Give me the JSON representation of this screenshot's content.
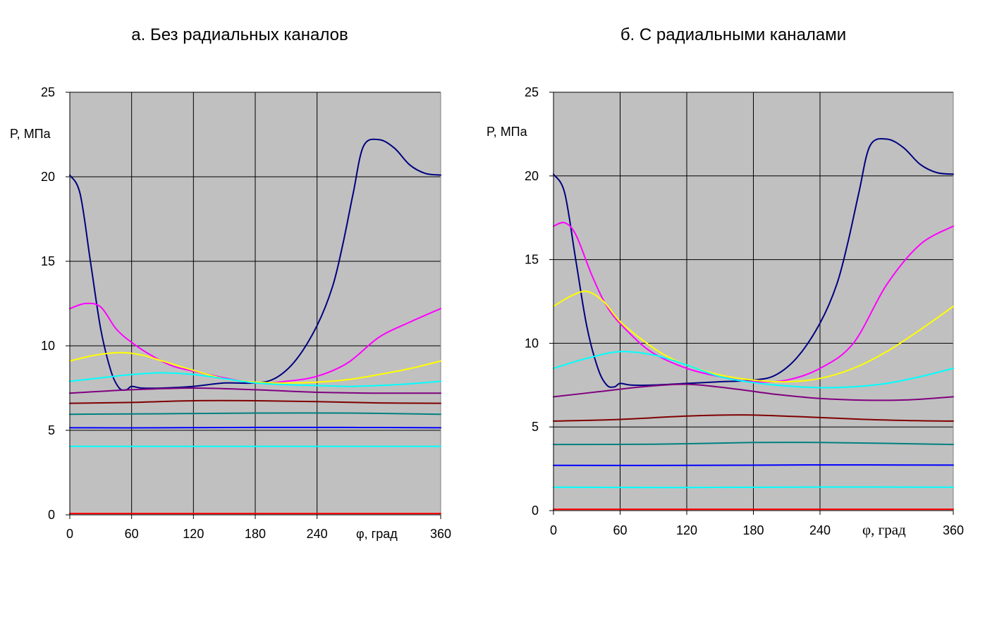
{
  "chart_data": [
    {
      "type": "line",
      "title": "а. Без радиальных каналов",
      "ylabel": "P, МПа",
      "xlabel": "φ, град",
      "xlim": [
        0,
        360
      ],
      "ylim": [
        0,
        25
      ],
      "x_ticks": [
        "0",
        "60",
        "120",
        "180",
        "240",
        "360"
      ],
      "y_ticks": [
        "0",
        "5",
        "10",
        "15",
        "20",
        "25"
      ],
      "grid": true,
      "plot_background": "#C0C0C0",
      "series": [
        {
          "color": "#000080",
          "points": [
            [
              0,
              20.1
            ],
            [
              10,
              19
            ],
            [
              20,
              15
            ],
            [
              30,
              11
            ],
            [
              40,
              8.5
            ],
            [
              48,
              7.5
            ],
            [
              55,
              7.4
            ],
            [
              60,
              7.6
            ],
            [
              70,
              7.5
            ],
            [
              90,
              7.5
            ],
            [
              120,
              7.6
            ],
            [
              150,
              7.8
            ],
            [
              180,
              7.8
            ],
            [
              200,
              8.1
            ],
            [
              220,
              9.2
            ],
            [
              240,
              11.2
            ],
            [
              255,
              13.5
            ],
            [
              265,
              16
            ],
            [
              275,
              19
            ],
            [
              285,
              21.8
            ],
            [
              300,
              22.2
            ],
            [
              315,
              21.7
            ],
            [
              330,
              20.7
            ],
            [
              345,
              20.2
            ],
            [
              360,
              20.1
            ]
          ]
        },
        {
          "color": "#FF00FF",
          "points": [
            [
              0,
              12.2
            ],
            [
              15,
              12.5
            ],
            [
              30,
              12.3
            ],
            [
              45,
              11
            ],
            [
              60,
              10.2
            ],
            [
              80,
              9.4
            ],
            [
              100,
              8.8
            ],
            [
              120,
              8.5
            ],
            [
              150,
              8.1
            ],
            [
              180,
              7.8
            ],
            [
              210,
              7.9
            ],
            [
              240,
              8.2
            ],
            [
              270,
              9
            ],
            [
              300,
              10.5
            ],
            [
              330,
              11.4
            ],
            [
              360,
              12.2
            ]
          ]
        },
        {
          "color": "#FFFF00",
          "points": [
            [
              0,
              9.1
            ],
            [
              25,
              9.45
            ],
            [
              50,
              9.6
            ],
            [
              70,
              9.45
            ],
            [
              90,
              9.1
            ],
            [
              120,
              8.55
            ],
            [
              150,
              8.05
            ],
            [
              180,
              7.85
            ],
            [
              210,
              7.8
            ],
            [
              240,
              7.85
            ],
            [
              270,
              8
            ],
            [
              300,
              8.3
            ],
            [
              330,
              8.65
            ],
            [
              360,
              9.1
            ]
          ]
        },
        {
          "color": "#00FFFF",
          "points": [
            [
              0,
              7.9
            ],
            [
              30,
              8.1
            ],
            [
              60,
              8.3
            ],
            [
              90,
              8.4
            ],
            [
              120,
              8.3
            ],
            [
              150,
              8.05
            ],
            [
              180,
              7.8
            ],
            [
              210,
              7.7
            ],
            [
              240,
              7.65
            ],
            [
              270,
              7.6
            ],
            [
              300,
              7.65
            ],
            [
              330,
              7.75
            ],
            [
              360,
              7.9
            ]
          ]
        },
        {
          "color": "#800080",
          "points": [
            [
              0,
              7.2
            ],
            [
              60,
              7.4
            ],
            [
              120,
              7.5
            ],
            [
              180,
              7.4
            ],
            [
              240,
              7.25
            ],
            [
              300,
              7.2
            ],
            [
              360,
              7.2
            ]
          ]
        },
        {
          "color": "#800000",
          "points": [
            [
              0,
              6.6
            ],
            [
              60,
              6.65
            ],
            [
              120,
              6.75
            ],
            [
              180,
              6.75
            ],
            [
              240,
              6.7
            ],
            [
              300,
              6.62
            ],
            [
              360,
              6.6
            ]
          ]
        },
        {
          "color": "#008080",
          "points": [
            [
              0,
              5.95
            ],
            [
              90,
              5.98
            ],
            [
              180,
              6.02
            ],
            [
              270,
              6.02
            ],
            [
              360,
              5.95
            ]
          ]
        },
        {
          "color": "#0000FF",
          "points": [
            [
              0,
              5.15
            ],
            [
              90,
              5.15
            ],
            [
              180,
              5.17
            ],
            [
              270,
              5.17
            ],
            [
              360,
              5.15
            ]
          ]
        },
        {
          "color": "#00FFFF",
          "points": [
            [
              0,
              4.05
            ],
            [
              180,
              4.05
            ],
            [
              360,
              4.05
            ]
          ]
        },
        {
          "color": "#FF0000",
          "points": [
            [
              0,
              0.08
            ],
            [
              180,
              0.08
            ],
            [
              360,
              0.08
            ]
          ]
        }
      ]
    },
    {
      "type": "line",
      "title": "б. С радиальными каналами",
      "ylabel": "P, МПа",
      "xlabel": "φ, град",
      "xlim": [
        0,
        360
      ],
      "ylim": [
        0,
        25
      ],
      "x_ticks": [
        "0",
        "60",
        "120",
        "180",
        "240",
        "360"
      ],
      "y_ticks": [
        "0",
        "5",
        "10",
        "15",
        "20",
        "25"
      ],
      "grid": true,
      "plot_background": "#C0C0C0",
      "series": [
        {
          "color": "#000080",
          "points": [
            [
              0,
              20.1
            ],
            [
              10,
              19
            ],
            [
              20,
              15
            ],
            [
              30,
              11
            ],
            [
              40,
              8.5
            ],
            [
              48,
              7.5
            ],
            [
              55,
              7.4
            ],
            [
              60,
              7.6
            ],
            [
              70,
              7.5
            ],
            [
              90,
              7.5
            ],
            [
              120,
              7.6
            ],
            [
              150,
              7.7
            ],
            [
              180,
              7.8
            ],
            [
              200,
              8.1
            ],
            [
              220,
              9.2
            ],
            [
              240,
              11.2
            ],
            [
              255,
              13.5
            ],
            [
              265,
              16
            ],
            [
              275,
              19
            ],
            [
              285,
              21.8
            ],
            [
              300,
              22.2
            ],
            [
              315,
              21.7
            ],
            [
              330,
              20.7
            ],
            [
              345,
              20.2
            ],
            [
              360,
              20.1
            ]
          ]
        },
        {
          "color": "#FF00FF",
          "points": [
            [
              0,
              17
            ],
            [
              10,
              17.2
            ],
            [
              20,
              16.5
            ],
            [
              35,
              14
            ],
            [
              50,
              12
            ],
            [
              70,
              10.5
            ],
            [
              90,
              9.4
            ],
            [
              120,
              8.5
            ],
            [
              150,
              8
            ],
            [
              180,
              7.7
            ],
            [
              210,
              7.8
            ],
            [
              240,
              8.5
            ],
            [
              270,
              10
            ],
            [
              300,
              13.5
            ],
            [
              330,
              15.9
            ],
            [
              360,
              17
            ]
          ]
        },
        {
          "color": "#FFFF00",
          "points": [
            [
              0,
              12.2
            ],
            [
              15,
              12.8
            ],
            [
              30,
              13.1
            ],
            [
              45,
              12.5
            ],
            [
              60,
              11.3
            ],
            [
              80,
              10.2
            ],
            [
              100,
              9.3
            ],
            [
              120,
              8.7
            ],
            [
              150,
              8.1
            ],
            [
              180,
              7.8
            ],
            [
              210,
              7.7
            ],
            [
              240,
              7.9
            ],
            [
              270,
              8.5
            ],
            [
              300,
              9.5
            ],
            [
              330,
              10.8
            ],
            [
              360,
              12.2
            ]
          ]
        },
        {
          "color": "#00FFFF",
          "points": [
            [
              0,
              8.5
            ],
            [
              30,
              9.1
            ],
            [
              60,
              9.5
            ],
            [
              90,
              9.3
            ],
            [
              120,
              8.7
            ],
            [
              150,
              8
            ],
            [
              180,
              7.65
            ],
            [
              210,
              7.45
            ],
            [
              240,
              7.35
            ],
            [
              270,
              7.4
            ],
            [
              300,
              7.6
            ],
            [
              330,
              8
            ],
            [
              360,
              8.5
            ]
          ]
        },
        {
          "color": "#800080",
          "points": [
            [
              0,
              6.8
            ],
            [
              40,
              7.1
            ],
            [
              80,
              7.4
            ],
            [
              120,
              7.55
            ],
            [
              160,
              7.3
            ],
            [
              200,
              6.95
            ],
            [
              240,
              6.7
            ],
            [
              280,
              6.6
            ],
            [
              320,
              6.62
            ],
            [
              360,
              6.8
            ]
          ]
        },
        {
          "color": "#800000",
          "points": [
            [
              0,
              5.35
            ],
            [
              60,
              5.45
            ],
            [
              120,
              5.65
            ],
            [
              170,
              5.72
            ],
            [
              220,
              5.62
            ],
            [
              280,
              5.45
            ],
            [
              330,
              5.37
            ],
            [
              360,
              5.35
            ]
          ]
        },
        {
          "color": "#008080",
          "points": [
            [
              0,
              3.95
            ],
            [
              90,
              3.97
            ],
            [
              180,
              4.07
            ],
            [
              240,
              4.07
            ],
            [
              300,
              4.02
            ],
            [
              360,
              3.95
            ]
          ]
        },
        {
          "color": "#0000FF",
          "points": [
            [
              0,
              2.7
            ],
            [
              120,
              2.7
            ],
            [
              240,
              2.73
            ],
            [
              360,
              2.72
            ]
          ]
        },
        {
          "color": "#00FFFF",
          "points": [
            [
              0,
              1.4
            ],
            [
              120,
              1.38
            ],
            [
              240,
              1.41
            ],
            [
              360,
              1.4
            ]
          ]
        },
        {
          "color": "#FF0000",
          "points": [
            [
              0,
              0.08
            ],
            [
              180,
              0.08
            ],
            [
              360,
              0.08
            ]
          ]
        }
      ]
    }
  ]
}
